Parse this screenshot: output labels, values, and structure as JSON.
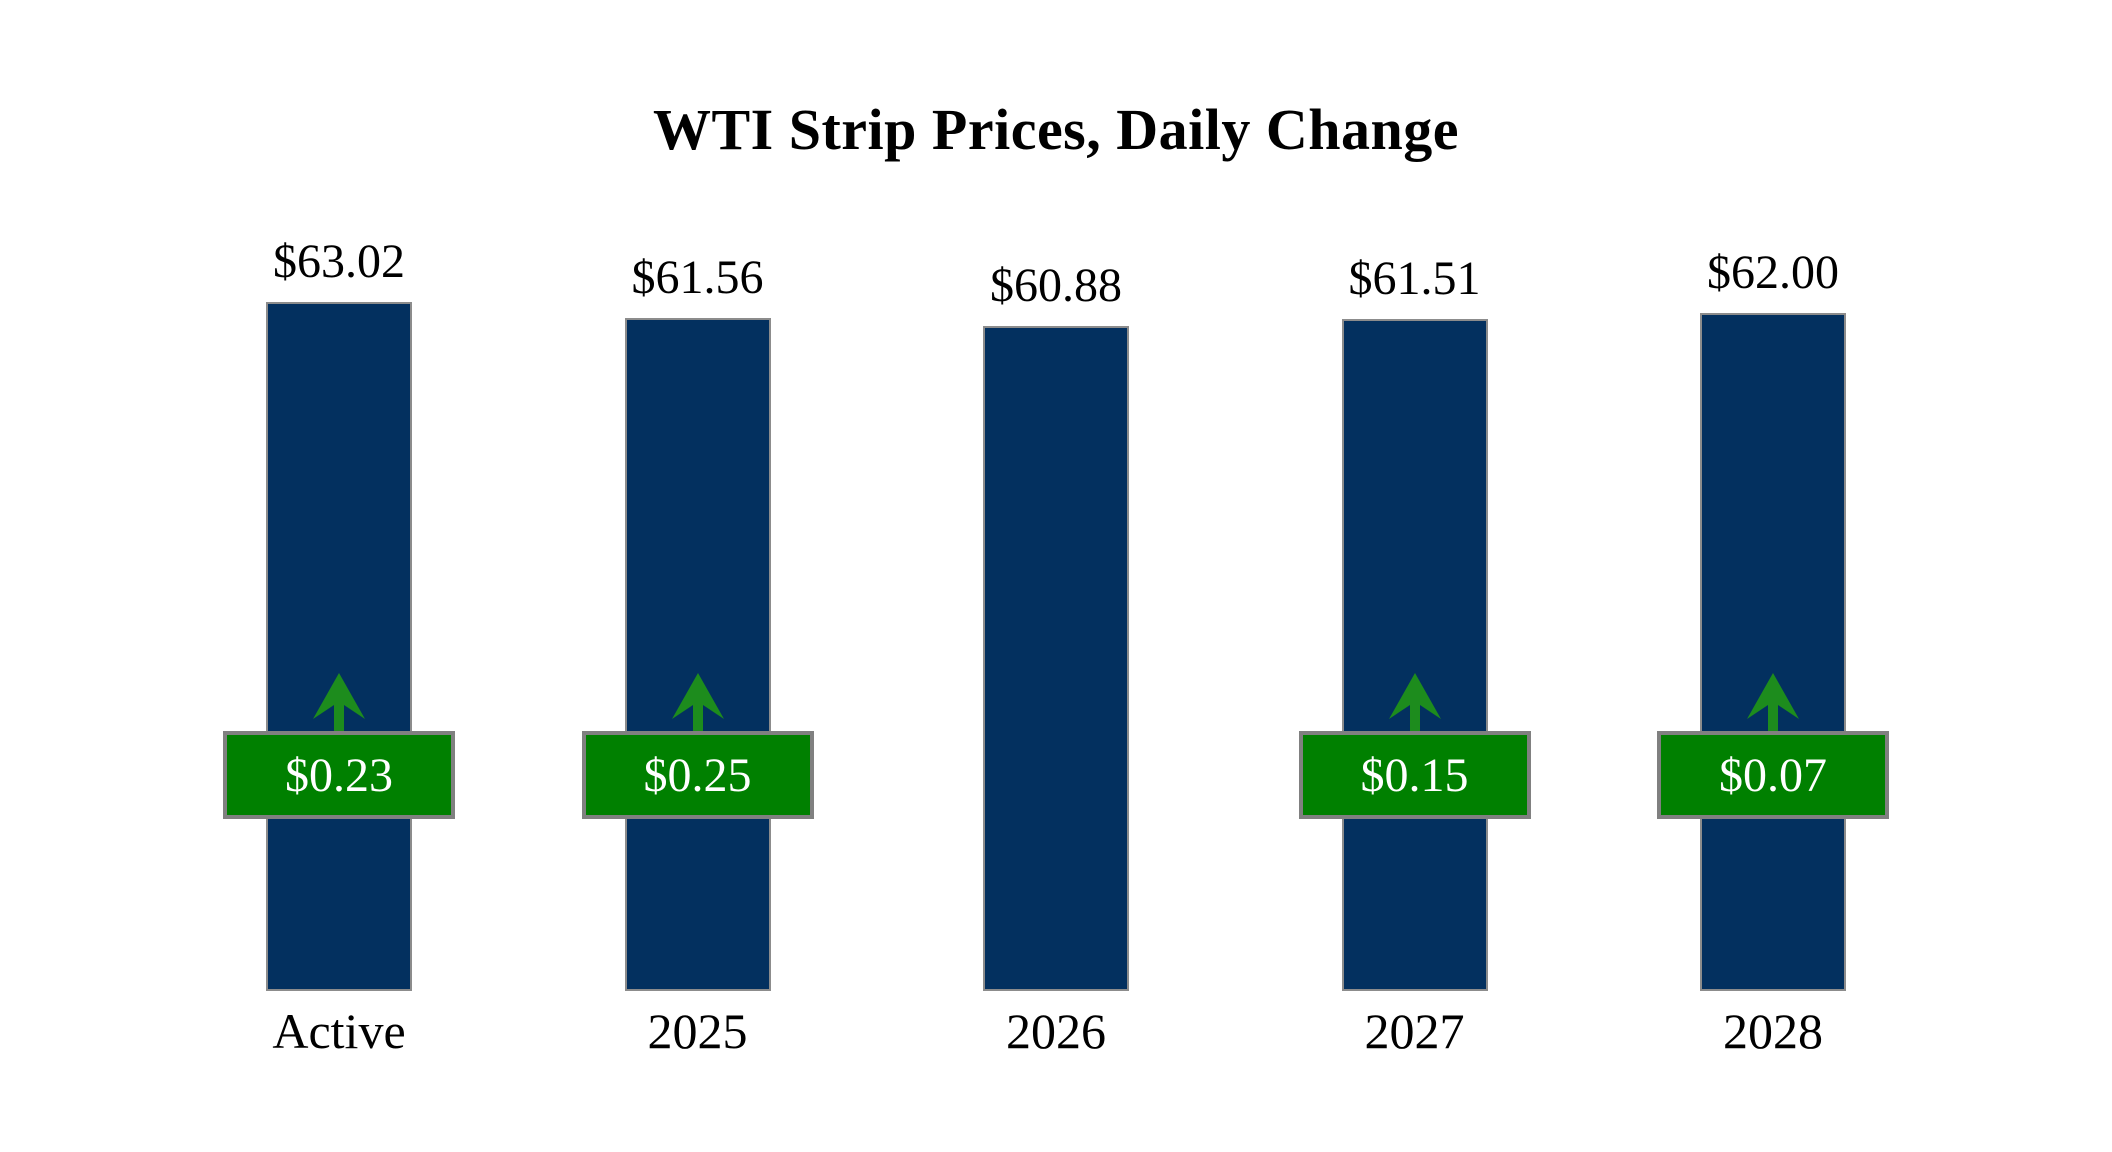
{
  "chart_data": {
    "type": "bar",
    "title": "WTI Strip Prices, Daily Change",
    "categories": [
      "Active",
      "2025",
      "2026",
      "2027",
      "2028"
    ],
    "series": [
      {
        "name": "strip_price_usd",
        "values": [
          63.02,
          61.56,
          60.88,
          61.51,
          62.0
        ]
      },
      {
        "name": "daily_change_usd",
        "values": [
          0.23,
          0.25,
          null,
          0.15,
          0.07
        ]
      }
    ],
    "price_labels": [
      "$63.02",
      "$61.56",
      "$60.88",
      "$61.51",
      "$62.00"
    ],
    "change_labels": [
      "$0.23",
      "$0.25",
      null,
      "$0.15",
      "$0.07"
    ],
    "change_direction": [
      "up",
      "up",
      null,
      "up",
      "up"
    ],
    "ylim": [
      0,
      63.02
    ],
    "grid": false,
    "legend": false,
    "axes_hidden": true
  },
  "colors": {
    "background": "#ffffff",
    "text": "#000000",
    "bar_fill": "#03305f",
    "bar_border": "#8c8c8c",
    "badge_fill": "#008000",
    "badge_border": "#808080",
    "badge_text": "#ffffff",
    "arrow": "#1d8c1d"
  }
}
